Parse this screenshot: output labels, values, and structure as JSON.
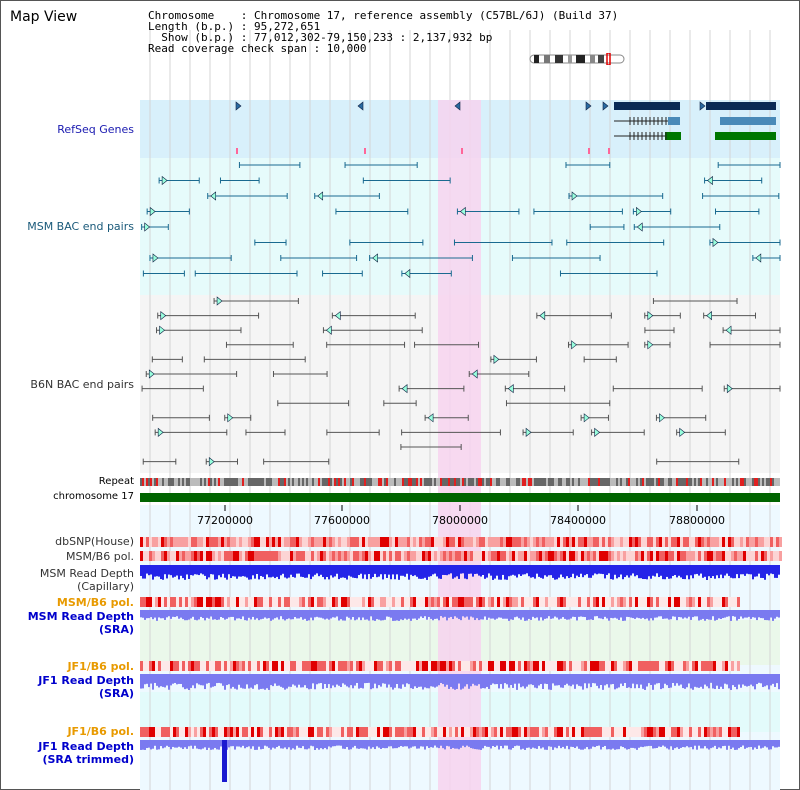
{
  "header": {
    "title": "Map View",
    "info_lines": [
      "Chromosome    : Chromosome 17, reference assembly (C57BL/6J) (Build 37)",
      "Length (b.p.) : 95,272,651",
      "  Show (b.p.) : 77,012,302-79,150,233 : 2,137,932 bp",
      "Read coverage check span : 10,000"
    ]
  },
  "tracks": {
    "refseq": "RefSeq Genes",
    "msm_bac": "MSM BAC end pairs",
    "b6n_bac": "B6N BAC end pairs",
    "repeat": "Repeat",
    "chromosome": "chromosome 17",
    "dbsnp": "dbSNP(House)",
    "msm_b6_pol_1": "MSM/B6 pol.",
    "msm_depth_cap_1": "MSM Read Depth",
    "msm_depth_cap_2": "(Capillary)",
    "msm_b6_pol_2": "MSM/B6 pol.",
    "msm_depth_sra_1": "MSM Read Depth",
    "msm_depth_sra_2": "(SRA)",
    "jf1_b6_pol_1": "JF1/B6 pol.",
    "jf1_depth_sra_1": "JF1 Read Depth",
    "jf1_depth_sra_2": "(SRA)",
    "jf1_b6_pol_2": "JF1/B6 pol.",
    "jf1_depth_trim_1": "JF1 Read Depth",
    "jf1_depth_trim_2": "(SRA trimmed)"
  },
  "axis": {
    "ticks": [
      "77200000",
      "77600000",
      "78000000",
      "78400000",
      "78800000"
    ]
  },
  "colors": {
    "refseq_label": "#1a1ab0",
    "msm_bac_label": "#1a5a7a",
    "b6n_label": "#333333",
    "orange_label": "#e89a00",
    "blue_label": "#0000cc",
    "highlight": "#f7d3ef",
    "chromosome_bar": "#006400"
  }
}
